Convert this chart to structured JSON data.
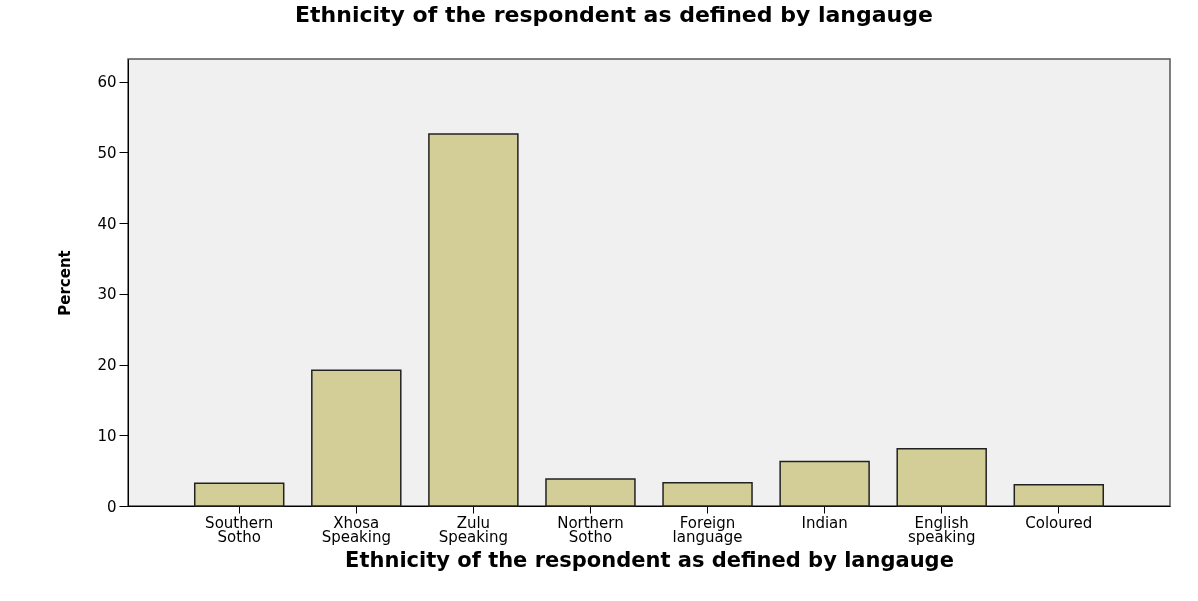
{
  "chart_data": {
    "type": "bar",
    "title": "Ethnicity of the respondent as defined by langauge",
    "xlabel": "Ethnicity of the respondent as defined by langauge",
    "ylabel": "Percent",
    "categories": [
      "Southern Sotho",
      "Xhosa Speaking",
      "Zulu Speaking",
      "Northern Sotho",
      "Foreign language",
      "Indian",
      "English speaking",
      "Coloured"
    ],
    "values": [
      3.2,
      19.2,
      52.6,
      3.8,
      3.3,
      6.3,
      8.1,
      3.0
    ],
    "color": "#d3ce97",
    "ylim": [
      0,
      63.2
    ],
    "yticks": [
      0,
      10,
      20,
      30,
      40,
      50,
      60
    ]
  }
}
